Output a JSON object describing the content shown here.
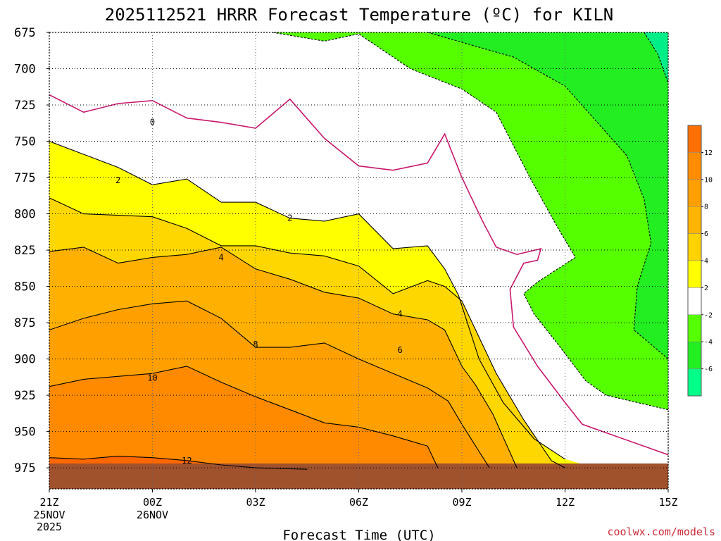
{
  "title": "2025112521 HRRR Forecast Temperature (ºC) for KILN",
  "xlabel": "Forecast Time (UTC)",
  "credit": "coolwx.com/models",
  "x_ticks": [
    {
      "label": "21Z",
      "sub": [
        "25NOV",
        "2025"
      ]
    },
    {
      "label": "00Z",
      "sub": [
        "26NOV"
      ]
    },
    {
      "label": "03Z",
      "sub": []
    },
    {
      "label": "06Z",
      "sub": []
    },
    {
      "label": "09Z",
      "sub": []
    },
    {
      "label": "12Z",
      "sub": []
    },
    {
      "label": "15Z",
      "sub": []
    }
  ],
  "y_ticks": [
    "675",
    "700",
    "725",
    "750",
    "775",
    "800",
    "825",
    "850",
    "875",
    "900",
    "925",
    "950",
    "975"
  ],
  "colorbar": {
    "labels": [
      "12",
      "10",
      "8",
      "6",
      "4",
      "2",
      "-2",
      "-4",
      "-6"
    ],
    "colors": [
      "#ff7000",
      "#ff8c00",
      "#ffa000",
      "#ffb400",
      "#ffd200",
      "#ffff00",
      "#ffffff",
      "#55ff00",
      "#22ee22",
      "#00ff88"
    ]
  },
  "colors": {
    "freezing_line": "#c8186e",
    "ground": "#a0522d",
    "band_0_2": "#ffffff",
    "band_2_4": "#ffff00",
    "band_4_6": "#ffd700",
    "band_6_8": "#ffb000",
    "band_8_10": "#ffa000",
    "band_10_12": "#ff8a00",
    "band_12_14": "#ff6800",
    "band_m2_m4": "#55ff00",
    "band_m4_m6": "#22ee22",
    "band_m6_m8": "#00ee88"
  },
  "chart_data": {
    "type": "heatmap",
    "title": "2025112521 HRRR Forecast Temperature (ºC) for KILN",
    "xlabel": "Forecast Time (UTC)",
    "ylabel": "",
    "x_range_hours_after_21Z": [
      0,
      18
    ],
    "y_range_hPa": [
      675,
      975
    ],
    "y_scale": "pressure (inverted)",
    "grid": true,
    "contour_interval_C": 2,
    "contour_labels": [
      "0",
      "2",
      "2",
      "4",
      "4",
      "6",
      "8",
      "10",
      "12"
    ],
    "isotherms": [
      {
        "temp_C": 12,
        "points": [
          [
            0,
            968
          ],
          [
            1,
            969
          ],
          [
            2,
            967
          ],
          [
            3,
            968
          ],
          [
            4,
            970
          ],
          [
            5,
            973
          ],
          [
            6,
            975
          ],
          [
            7.5,
            976
          ]
        ]
      },
      {
        "temp_C": 10,
        "points": [
          [
            0,
            919
          ],
          [
            1,
            914
          ],
          [
            2,
            912
          ],
          [
            3,
            910
          ],
          [
            4,
            905
          ],
          [
            5,
            916
          ],
          [
            6,
            926
          ],
          [
            7,
            935
          ],
          [
            8,
            944
          ],
          [
            9,
            947
          ],
          [
            10,
            953
          ],
          [
            11,
            960
          ],
          [
            11.3,
            975
          ]
        ]
      },
      {
        "temp_C": 8,
        "points": [
          [
            0,
            880
          ],
          [
            1,
            872
          ],
          [
            2,
            866
          ],
          [
            3,
            862
          ],
          [
            4,
            860
          ],
          [
            5,
            872
          ],
          [
            6,
            892
          ],
          [
            7,
            892
          ],
          [
            8,
            889
          ],
          [
            9,
            900
          ],
          [
            10,
            910
          ],
          [
            11,
            920
          ],
          [
            11.6,
            929
          ],
          [
            12,
            945
          ],
          [
            12.4,
            960
          ],
          [
            12.8,
            975
          ]
        ]
      },
      {
        "temp_C": 6,
        "points": [
          [
            0,
            826
          ],
          [
            1,
            823
          ],
          [
            2,
            834
          ],
          [
            3,
            830
          ],
          [
            4,
            828
          ],
          [
            5,
            823
          ],
          [
            6,
            838
          ],
          [
            7,
            845
          ],
          [
            8,
            854
          ],
          [
            9,
            858
          ],
          [
            10,
            869
          ],
          [
            11,
            873
          ],
          [
            11.5,
            880
          ],
          [
            12,
            905
          ],
          [
            12.4,
            918
          ],
          [
            12.9,
            938
          ],
          [
            13.6,
            975
          ]
        ]
      },
      {
        "temp_C": 4,
        "points": [
          [
            0,
            789
          ],
          [
            1,
            800
          ],
          [
            2,
            801
          ],
          [
            3,
            802
          ],
          [
            4,
            810
          ],
          [
            5,
            822
          ],
          [
            6,
            822
          ],
          [
            7,
            827
          ],
          [
            8,
            829
          ],
          [
            9,
            836
          ],
          [
            10,
            855
          ],
          [
            11,
            846
          ],
          [
            11.5,
            850
          ],
          [
            12,
            860
          ],
          [
            12.4,
            880
          ],
          [
            13,
            910
          ],
          [
            13.8,
            942
          ],
          [
            14.6,
            970
          ],
          [
            15,
            975
          ]
        ]
      },
      {
        "temp_C": 2,
        "points": [
          [
            0,
            750
          ],
          [
            1,
            759
          ],
          [
            2,
            768
          ],
          [
            3,
            780
          ],
          [
            4,
            776
          ],
          [
            5,
            792
          ],
          [
            6,
            792
          ],
          [
            7,
            803
          ],
          [
            8,
            805
          ],
          [
            9,
            800
          ],
          [
            10,
            824
          ],
          [
            11,
            822
          ],
          [
            11.5,
            838
          ],
          [
            11.9,
            856
          ],
          [
            12.5,
            900
          ],
          [
            13.2,
            930
          ],
          [
            14.1,
            955
          ],
          [
            15,
            969
          ]
        ]
      },
      {
        "temp_C": 0,
        "points": [
          [
            0,
            718
          ],
          [
            1,
            730
          ],
          [
            2,
            724
          ],
          [
            3,
            722
          ],
          [
            4,
            734
          ],
          [
            5,
            737
          ],
          [
            6,
            741
          ],
          [
            7,
            721
          ],
          [
            8,
            748
          ],
          [
            9,
            767
          ],
          [
            10,
            770
          ],
          [
            11,
            765
          ],
          [
            11.5,
            745
          ],
          [
            12,
            775
          ],
          [
            12.6,
            805
          ],
          [
            13,
            823
          ],
          [
            13.6,
            828
          ],
          [
            14.3,
            824
          ],
          [
            14.2,
            832
          ],
          [
            13.8,
            834
          ],
          [
            13.4,
            852
          ],
          [
            13.5,
            878
          ],
          [
            14.2,
            905
          ],
          [
            15,
            930
          ],
          [
            15.5,
            945
          ],
          [
            18,
            966
          ]
        ]
      },
      {
        "temp_C": -2,
        "points": [
          [
            6.5,
            675
          ],
          [
            8,
            681
          ],
          [
            9,
            676
          ],
          [
            10.5,
            700
          ],
          [
            12,
            714
          ],
          [
            13,
            730
          ],
          [
            14,
            776
          ],
          [
            14.8,
            810
          ],
          [
            15.3,
            830
          ],
          [
            14.2,
            847
          ],
          [
            13.8,
            855
          ],
          [
            14.1,
            869
          ],
          [
            14.8,
            890
          ],
          [
            15.6,
            915
          ],
          [
            16.2,
            925
          ],
          [
            18,
            935
          ]
        ]
      },
      {
        "temp_C": -4,
        "points": [
          [
            11,
            675
          ],
          [
            13.5,
            692
          ],
          [
            15,
            712
          ],
          [
            16.8,
            760
          ],
          [
            17.3,
            790
          ],
          [
            17.5,
            820
          ],
          [
            17.1,
            850
          ],
          [
            17,
            880
          ],
          [
            18,
            900
          ]
        ]
      },
      {
        "temp_C": -6,
        "points": [
          [
            17.3,
            675
          ],
          [
            17.7,
            690
          ],
          [
            18,
            710
          ]
        ]
      }
    ]
  }
}
